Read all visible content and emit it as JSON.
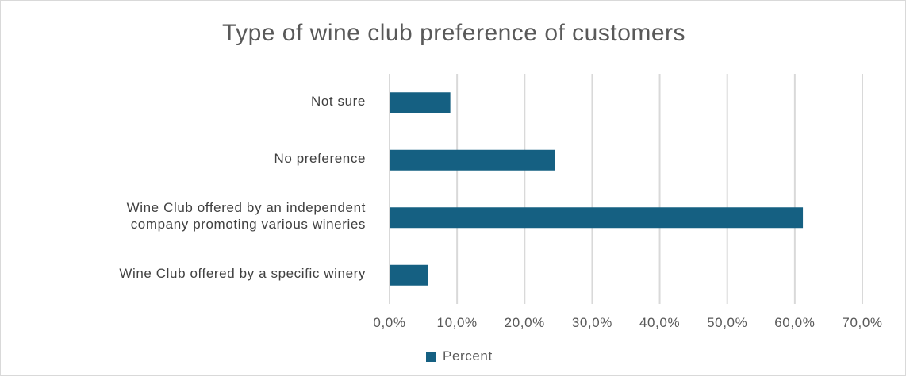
{
  "chart_data": {
    "type": "bar",
    "orientation": "horizontal",
    "title": "Type of wine club preference of customers",
    "categories": [
      "Not sure",
      "No preference",
      "Wine Club offered by an independent company promoting various wineries",
      "Wine Club offered by a specific winery"
    ],
    "category_lines": [
      [
        "Not sure"
      ],
      [
        "No preference"
      ],
      [
        "Wine Club offered by an independent",
        "company promoting various wineries"
      ],
      [
        "Wine Club offered by a specific winery"
      ]
    ],
    "series": [
      {
        "name": "Percent",
        "values": [
          0.09,
          0.245,
          0.612,
          0.057
        ],
        "color": "#156082"
      }
    ],
    "xlim": [
      0,
      0.7
    ],
    "xticks": [
      0,
      0.1,
      0.2,
      0.3,
      0.4,
      0.5,
      0.6,
      0.7
    ],
    "xtick_labels": [
      "0,0%",
      "10,0%",
      "20,0%",
      "30,0%",
      "40,0%",
      "50,0%",
      "60,0%",
      "70,0%"
    ],
    "grid": true,
    "gridline_color": "#d9d9d9",
    "legend_position": "bottom"
  }
}
